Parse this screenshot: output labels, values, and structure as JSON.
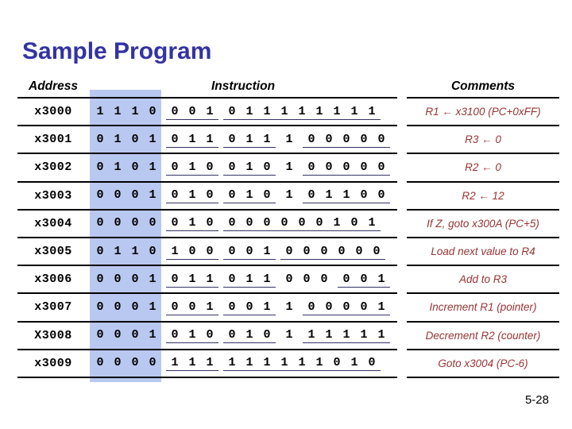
{
  "slide": {
    "title": "Sample Program",
    "page_number": "5-28"
  },
  "colors": {
    "title": "#3333A3",
    "highlight": "#B9C8F0",
    "comment": "#993333",
    "underline": "#333366",
    "line": "#000000",
    "text": "#000000"
  },
  "table": {
    "headers": {
      "address": "Address",
      "instruction": "Instruction",
      "comments": "Comments"
    },
    "rows": [
      {
        "address": "x3000",
        "groups": [
          {
            "bits": "1110",
            "underline": false
          },
          {
            "bits": "001",
            "underline": true
          },
          {
            "bits": "011111111",
            "underline": true
          }
        ],
        "comment": "R1 ← x3100 (PC+0xFF)"
      },
      {
        "address": "x3001",
        "groups": [
          {
            "bits": "0101",
            "underline": false
          },
          {
            "bits": "011",
            "underline": true
          },
          {
            "bits": "011",
            "underline": true
          },
          {
            "bits": "1",
            "underline": false
          },
          {
            "bits": "00000",
            "underline": true
          }
        ],
        "comment": "R3 ← 0"
      },
      {
        "address": "x3002",
        "groups": [
          {
            "bits": "0101",
            "underline": false
          },
          {
            "bits": "010",
            "underline": true
          },
          {
            "bits": "010",
            "underline": true
          },
          {
            "bits": "1",
            "underline": false
          },
          {
            "bits": "00000",
            "underline": true
          }
        ],
        "comment": "R2 ← 0"
      },
      {
        "address": "x3003",
        "groups": [
          {
            "bits": "0001",
            "underline": false
          },
          {
            "bits": "010",
            "underline": true
          },
          {
            "bits": "010",
            "underline": true
          },
          {
            "bits": "1",
            "underline": false
          },
          {
            "bits": "01100",
            "underline": true
          }
        ],
        "comment": "R2 ← 12"
      },
      {
        "address": "x3004",
        "groups": [
          {
            "bits": "0000",
            "underline": false
          },
          {
            "bits": "010",
            "underline": true
          },
          {
            "bits": "000000101",
            "underline": true
          }
        ],
        "comment": "If Z, goto x300A (PC+5)"
      },
      {
        "address": "x3005",
        "groups": [
          {
            "bits": "0110",
            "underline": false
          },
          {
            "bits": "100",
            "underline": true
          },
          {
            "bits": "001",
            "underline": true
          },
          {
            "bits": "000000",
            "underline": true
          }
        ],
        "comment": "Load next value to R4"
      },
      {
        "address": "x3006",
        "groups": [
          {
            "bits": "0001",
            "underline": false
          },
          {
            "bits": "011",
            "underline": true
          },
          {
            "bits": "011",
            "underline": true
          },
          {
            "bits": "000",
            "underline": false
          },
          {
            "bits": "001",
            "underline": true
          }
        ],
        "comment": "Add to R3"
      },
      {
        "address": "x3007",
        "groups": [
          {
            "bits": "0001",
            "underline": false
          },
          {
            "bits": "001",
            "underline": true
          },
          {
            "bits": "001",
            "underline": true
          },
          {
            "bits": "1",
            "underline": false
          },
          {
            "bits": "00001",
            "underline": true
          }
        ],
        "comment": "Increment R1 (pointer)"
      },
      {
        "address": "X3008",
        "groups": [
          {
            "bits": "0001",
            "underline": false
          },
          {
            "bits": "010",
            "underline": true
          },
          {
            "bits": "010",
            "underline": true
          },
          {
            "bits": "1",
            "underline": false
          },
          {
            "bits": "11111",
            "underline": true
          }
        ],
        "comment": "Decrement R2 (counter)"
      },
      {
        "address": "x3009",
        "groups": [
          {
            "bits": "0000",
            "underline": false
          },
          {
            "bits": "111",
            "underline": true
          },
          {
            "bits": "111111010",
            "underline": true
          }
        ],
        "comment": "Goto x3004 (PC-6)"
      }
    ]
  }
}
